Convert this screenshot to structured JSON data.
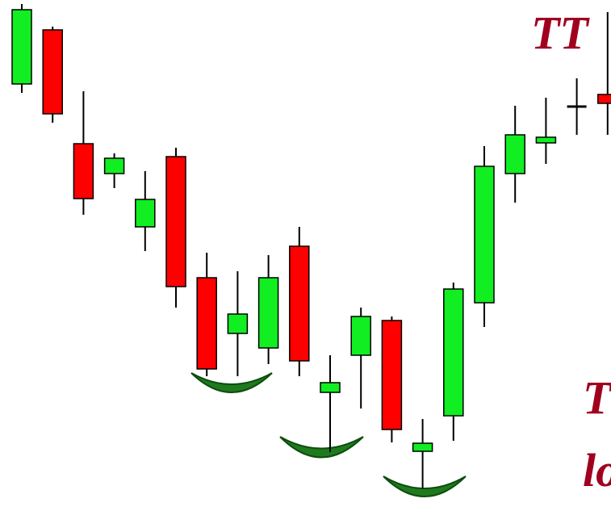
{
  "chart_data": {
    "type": "candlestick",
    "annotations": [
      "TT",
      "T",
      "lo"
    ],
    "open": [
      536,
      603,
      462,
      425,
      359,
      446,
      296,
      227,
      209,
      335,
      154,
      200,
      243,
      81,
      125,
      265,
      425,
      463,
      508,
      523
    ],
    "close": [
      628,
      499,
      394,
      444,
      393,
      285,
      183,
      251,
      296,
      193,
      166,
      248,
      108,
      91,
      282,
      434,
      473,
      470,
      508,
      512
    ],
    "high": [
      635,
      607,
      527,
      450,
      428,
      457,
      327,
      304,
      324,
      359,
      200,
      259,
      248,
      121,
      290,
      459,
      509,
      519,
      543,
      625
    ],
    "low": [
      525,
      488,
      374,
      407,
      329,
      259,
      174,
      174,
      189,
      174,
      80,
      134,
      92,
      35,
      94,
      235,
      389,
      437,
      473,
      473
    ],
    "up_color": "#11ee22",
    "down_color": "#ff0000",
    "doji_color": "#000000",
    "ylim": [
      0,
      640
    ]
  }
}
